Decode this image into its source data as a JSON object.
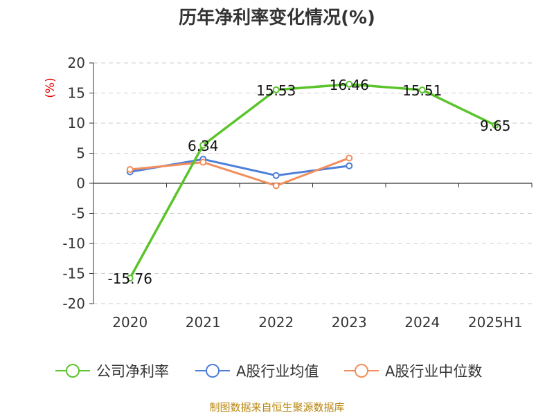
{
  "chart_data": {
    "type": "line",
    "title": "历年净利率变化情况(%)",
    "ylabel": "(%)",
    "xlabel": "",
    "categories": [
      "2020",
      "2021",
      "2022",
      "2023",
      "2024",
      "2025H1"
    ],
    "ylim": [
      -20,
      20
    ],
    "yticks": [
      20,
      15,
      10,
      5,
      0,
      -5,
      -10,
      -15,
      -20
    ],
    "grid": true,
    "legend_position": "bottom",
    "series": [
      {
        "name": "公司净利率",
        "color": "#5bc42b",
        "values": [
          -15.76,
          6.34,
          15.53,
          16.46,
          15.51,
          9.65
        ],
        "labels": [
          "-15.76",
          "6.34",
          "15.53",
          "16.46",
          "15.51",
          "9.65"
        ]
      },
      {
        "name": "A股行业均值",
        "color": "#4e7fd9",
        "values": [
          1.9,
          4.0,
          1.3,
          2.9,
          null,
          null
        ]
      },
      {
        "name": "A股行业中位数",
        "color": "#f28e5b",
        "values": [
          2.3,
          3.5,
          -0.4,
          4.2,
          null,
          null
        ]
      }
    ],
    "source": "制图数据来自恒生聚源数据库"
  }
}
